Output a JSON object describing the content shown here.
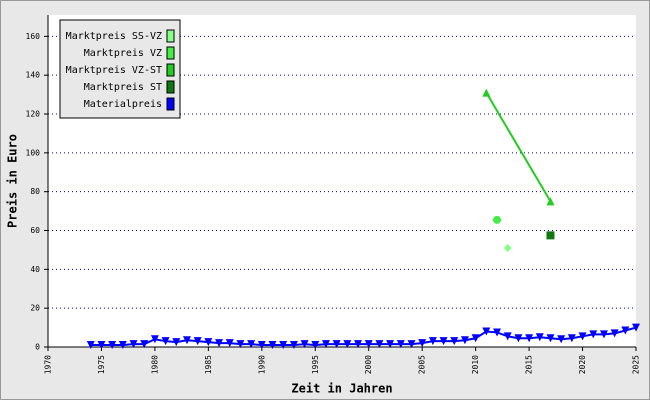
{
  "chart_data": {
    "type": "line",
    "xlabel": "Zeit in Jahren",
    "ylabel": "Preis in Euro",
    "xlim": [
      1970,
      2025
    ],
    "xticks": [
      1970,
      1975,
      1980,
      1985,
      1990,
      1995,
      2000,
      2005,
      2010,
      2015,
      2020,
      2025
    ],
    "ylim": [
      0,
      171
    ],
    "yticks": [
      0,
      20,
      40,
      60,
      80,
      100,
      120,
      140,
      160
    ],
    "grid": true,
    "legend": "upper left",
    "series": [
      {
        "name": "Marktpreis SS-VZ",
        "color": "#88ff88",
        "marker": "diamond",
        "line": false,
        "x": [
          2013
        ],
        "values": [
          51
        ]
      },
      {
        "name": "Marktpreis VZ",
        "color": "#44ee44",
        "marker": "circle",
        "line": false,
        "x": [
          2012
        ],
        "values": [
          65.5
        ]
      },
      {
        "name": "Marktpreis VZ-ST",
        "color": "#22cc22",
        "marker": "triangle-up",
        "line": true,
        "x": [
          2011,
          2017
        ],
        "values": [
          131,
          75
        ]
      },
      {
        "name": "Marktpreis ST",
        "color": "#117711",
        "marker": "square",
        "line": false,
        "x": [
          2017
        ],
        "values": [
          57.5
        ]
      },
      {
        "name": "Materialpreis",
        "color": "#0000ff",
        "marker": "triangle-down",
        "line": true,
        "x": [
          1974,
          1975,
          1976,
          1977,
          1978,
          1979,
          1980,
          1981,
          1982,
          1983,
          1984,
          1985,
          1986,
          1987,
          1988,
          1989,
          1990,
          1991,
          1992,
          1993,
          1994,
          1995,
          1996,
          1997,
          1998,
          1999,
          2000,
          2001,
          2002,
          2003,
          2004,
          2005,
          2006,
          2007,
          2008,
          2009,
          2010,
          2011,
          2012,
          2013,
          2014,
          2015,
          2016,
          2017,
          2018,
          2019,
          2020,
          2021,
          2022,
          2023,
          2024,
          2025
        ],
        "values": [
          1,
          1,
          1,
          1,
          1.5,
          1.5,
          4,
          3,
          2.5,
          3.5,
          3,
          2.5,
          2,
          2,
          1.5,
          1.5,
          1,
          1,
          1,
          1,
          1.5,
          1,
          1.5,
          1.5,
          1.5,
          1.5,
          1.5,
          1.5,
          1.5,
          1.5,
          1.5,
          2,
          3,
          3,
          3,
          3.5,
          4.5,
          8,
          7.5,
          5.5,
          4.5,
          4.5,
          5,
          4.5,
          4,
          4.5,
          5.5,
          6.5,
          6.5,
          7,
          8.5,
          10
        ]
      }
    ]
  }
}
